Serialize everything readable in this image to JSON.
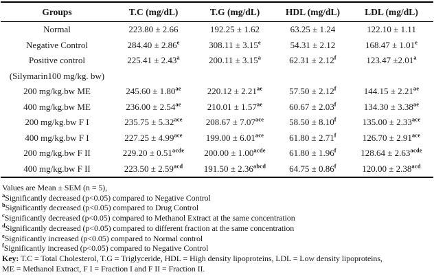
{
  "colors": {
    "text": "#1a1a1a",
    "rule": "#000000",
    "background": "#ffffff"
  },
  "table": {
    "columns": [
      "Groups",
      "T.C (mg/dL)",
      "T.G (mg/dL)",
      "HDL (mg/dL)",
      "LDL (mg/dL)"
    ],
    "rows": [
      {
        "group": "Normal",
        "cells": [
          {
            "v": "223.80 ± 2.66",
            "s": ""
          },
          {
            "v": "192.25 ± 1.62",
            "s": ""
          },
          {
            "v": "63.25 ± 1.24",
            "s": ""
          },
          {
            "v": "122.10 ± 1.11",
            "s": ""
          }
        ]
      },
      {
        "group": "Negative Control",
        "cells": [
          {
            "v": "284.40 ± 2.86",
            "s": "e"
          },
          {
            "v": "308.11 ± 3.15",
            "s": "e"
          },
          {
            "v": "54.31 ± 2.12",
            "s": ""
          },
          {
            "v": "168.47 ± 1.01",
            "s": "e"
          }
        ]
      },
      {
        "group": "Positive control",
        "cells": [
          {
            "v": "225.41 ± 2.43",
            "s": "a"
          },
          {
            "v": "200.11 ± 3.15",
            "s": "a"
          },
          {
            "v": "62.31 ± 2.12",
            "s": "f"
          },
          {
            "v": "123.47 ±2.01",
            "s": "a"
          }
        ]
      },
      {
        "group": "(Silymarin100 mg/kg. bw)",
        "cells": [
          {
            "v": "",
            "s": ""
          },
          {
            "v": "",
            "s": ""
          },
          {
            "v": "",
            "s": ""
          },
          {
            "v": "",
            "s": ""
          }
        ]
      },
      {
        "group": "200 mg/kg.bw ME",
        "cells": [
          {
            "v": "245.60 ± 1.80",
            "s": "ae"
          },
          {
            "v": "220.12 ± 2.21",
            "s": "ae"
          },
          {
            "v": "57.50 ± 2.12",
            "s": "f"
          },
          {
            "v": "144.15 ± 2.21",
            "s": "ae"
          }
        ]
      },
      {
        "group": "400 mg/kg.bw ME",
        "cells": [
          {
            "v": "236.00 ± 2.54",
            "s": "ae"
          },
          {
            "v": "210.01 ± 1.57",
            "s": "ae"
          },
          {
            "v": "60.67 ± 2.03",
            "s": "f"
          },
          {
            "v": "134.30 ± 3.38",
            "s": "ae"
          }
        ]
      },
      {
        "group": "200 mg/kg.bw F I",
        "cells": [
          {
            "v": "235.75 ± 5.32",
            "s": "ace"
          },
          {
            "v": "208.67 ± 7.07",
            "s": "ace"
          },
          {
            "v": "58.50 ± 8.10",
            "s": "f"
          },
          {
            "v": "135.00 ± 2.33",
            "s": "ace"
          }
        ]
      },
      {
        "group": "400 mg/kg.bw F I",
        "cells": [
          {
            "v": "227.25 ± 4.99",
            "s": "ace"
          },
          {
            "v": "199.00 ± 6.01",
            "s": "ace"
          },
          {
            "v": "61.80 ± 2.71",
            "s": "f"
          },
          {
            "v": "126.70 ± 2.91",
            "s": "ace"
          }
        ]
      },
      {
        "group": "200 mg/kg.bw F II",
        "cells": [
          {
            "v": "229.20 ± 0.51",
            "s": "acde"
          },
          {
            "v": "200.00 ± 1.00",
            "s": "acde"
          },
          {
            "v": "61.80 ± 1.96",
            "s": "f"
          },
          {
            "v": "128.64 ± 2.63",
            "s": "acde"
          }
        ]
      },
      {
        "group": "400 mg/kg.bw F II",
        "cells": [
          {
            "v": "223.50 ± 2.59",
            "s": "acd"
          },
          {
            "v": "191.50 ± 2.36",
            "s": "abcd"
          },
          {
            "v": "64.75 ± 0.86",
            "s": "f"
          },
          {
            "v": "120.00 ± 2.38",
            "s": "acd"
          }
        ]
      }
    ]
  },
  "notes": {
    "values_note": "Values are Mean ± SEM (n = 5),",
    "footnotes": [
      {
        "sup": "a",
        "text": "Significantly decreased (p<0.05) compared to Negative Control"
      },
      {
        "sup": "b",
        "text": "Significantly decreased (p<0.05) compared to Drug Control"
      },
      {
        "sup": "c",
        "text": "Significantly decreased (p<0.05) compared to Methanol Extract at the same concentration"
      },
      {
        "sup": "d",
        "text": "Significantly decreased (p<0.05) compared to different fraction at the same concentration"
      },
      {
        "sup": "e",
        "text": "Significantly increased (p<0.05) compared to Normal control"
      },
      {
        "sup": "f",
        "text": "Significantly increased (p<0.05) compared to Negative Control"
      }
    ],
    "key_label": "Key:",
    "key_line1": " T.C = Total Cholesterol, T.G = Triglyceride, HDL = High density lipoproteins, LDL = Low density lipoproteins,",
    "key_line2": "ME = Methanol Extract, F I = Fraction I and F II = Fraction II."
  }
}
